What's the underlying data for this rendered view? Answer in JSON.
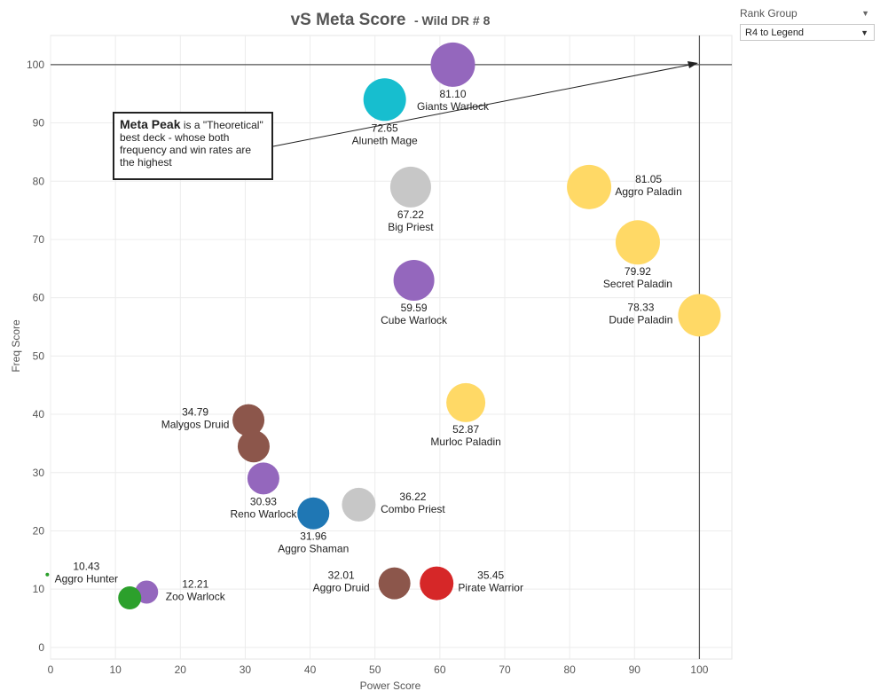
{
  "chart_data": {
    "type": "scatter",
    "title": "vS Meta Score",
    "subtitle": "- Wild DR # 8",
    "xlabel": "Power Score",
    "ylabel": "Freq Score",
    "xlim": [
      0,
      105
    ],
    "ylim": [
      -2,
      105
    ],
    "xticks": [
      0,
      10,
      20,
      30,
      40,
      50,
      60,
      70,
      80,
      90,
      100
    ],
    "yticks": [
      0,
      10,
      20,
      30,
      40,
      50,
      60,
      70,
      80,
      90,
      100
    ],
    "grid": true,
    "reference_lines": {
      "x": 100,
      "y": 100
    },
    "points": [
      {
        "name": "Giants Warlock",
        "score": "81.10",
        "x": 62,
        "y": 100,
        "color": "#9467bd",
        "size": 25,
        "label_pos": "below"
      },
      {
        "name": "Aluneth Mage",
        "score": "72.65",
        "x": 51.5,
        "y": 94,
        "color": "#17becf",
        "size": 24,
        "label_pos": "below"
      },
      {
        "name": "Aggro Paladin",
        "score": "81.05",
        "x": 83,
        "y": 79,
        "color": "#ffd966",
        "size": 25,
        "label_pos": "right"
      },
      {
        "name": "Big Priest",
        "score": "67.22",
        "x": 55.5,
        "y": 79,
        "color": "#c7c7c7",
        "size": 23,
        "label_pos": "below"
      },
      {
        "name": "Secret Paladin",
        "score": "79.92",
        "x": 90.5,
        "y": 69.5,
        "color": "#ffd966",
        "size": 25,
        "label_pos": "below"
      },
      {
        "name": "Cube Warlock",
        "score": "59.59",
        "x": 56,
        "y": 63,
        "color": "#9467bd",
        "size": 23,
        "label_pos": "below"
      },
      {
        "name": "Dude Paladin",
        "score": "78.33",
        "x": 100,
        "y": 57,
        "color": "#ffd966",
        "size": 24,
        "label_pos": "left"
      },
      {
        "name": "Murloc Paladin",
        "score": "52.87",
        "x": 64,
        "y": 42,
        "color": "#ffd966",
        "size": 22,
        "label_pos": "below"
      },
      {
        "name": "Malygos Druid",
        "score": "34.79",
        "x": 30.5,
        "y": 39,
        "color": "#8c564b",
        "size": 18,
        "label_pos": "left"
      },
      {
        "name": "",
        "score": "",
        "x": 31.3,
        "y": 34.5,
        "color": "#8c564b",
        "size": 18,
        "label_pos": "none"
      },
      {
        "name": "Reno Warlock",
        "score": "30.93",
        "x": 32.8,
        "y": 29,
        "color": "#9467bd",
        "size": 18,
        "label_pos": "below"
      },
      {
        "name": "Combo Priest",
        "score": "36.22",
        "x": 47.5,
        "y": 24.5,
        "color": "#c7c7c7",
        "size": 19,
        "label_pos": "right"
      },
      {
        "name": "Aggro Shaman",
        "score": "31.96",
        "x": 40.5,
        "y": 23,
        "color": "#1f77b4",
        "size": 18,
        "label_pos": "below"
      },
      {
        "name": "Aggro Druid",
        "score": "32.01",
        "x": 53,
        "y": 11,
        "color": "#8c564b",
        "size": 18,
        "label_pos": "left"
      },
      {
        "name": "Pirate Warrior",
        "score": "35.45",
        "x": 59.5,
        "y": 11,
        "color": "#d62728",
        "size": 19,
        "label_pos": "right"
      },
      {
        "name": "Zoo Warlock",
        "score": "12.21",
        "x": 14.8,
        "y": 9.5,
        "color": "#9467bd",
        "size": 13,
        "label_pos": "right"
      },
      {
        "name": "",
        "score": "",
        "x": 12.2,
        "y": 8.5,
        "color": "#2ca02c",
        "size": 13,
        "label_pos": "none"
      },
      {
        "name": "Aggro Hunter",
        "score": "10.43",
        "x": -0.5,
        "y": 12.5,
        "color": "#2ca02c",
        "size": 2,
        "label_pos": "right"
      }
    ]
  },
  "annotation": {
    "bold": "Meta Peak",
    "text": " is a \"Theoretical\" best deck - whose both frequency and win rates are the highest"
  },
  "filter": {
    "label": "Rank Group",
    "value": "R4 to Legend"
  }
}
